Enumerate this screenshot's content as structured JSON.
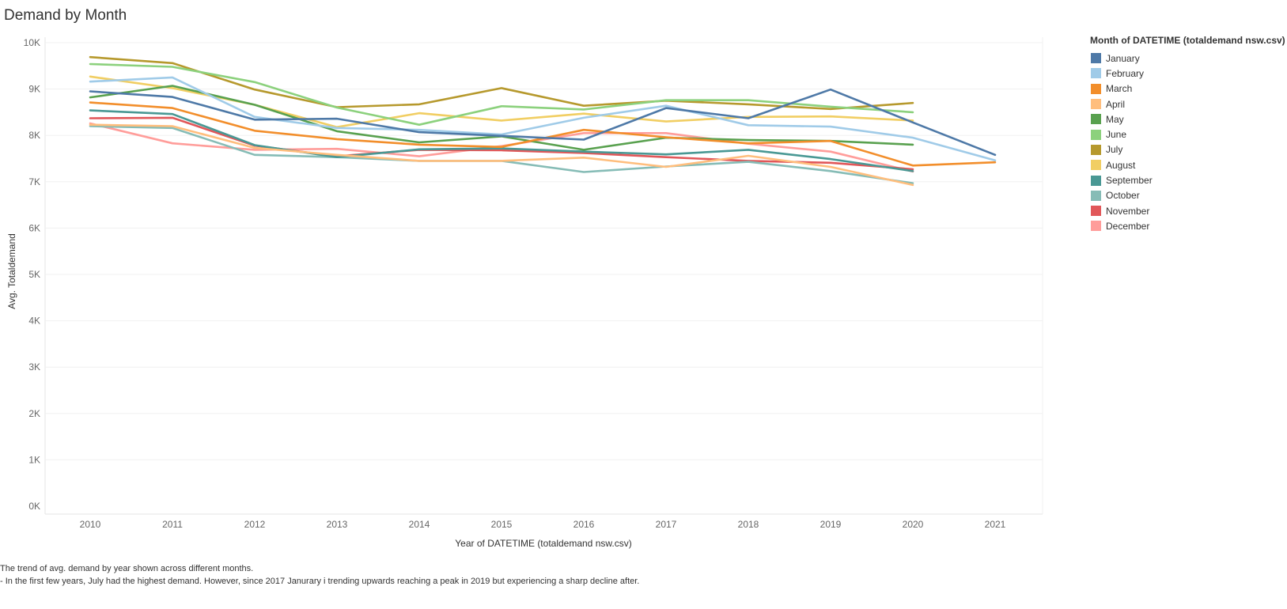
{
  "title": "Demand by Month",
  "legend_title": "Month of DATETIME (totaldemand nsw.csv)",
  "caption": {
    "line1": "The trend of avg. demand by year shown across different months.",
    "line2": "- In the first few years, July had the highest demand. However, since 2017 Janurary i trending upwards reaching a peak in 2019 but experiencing a sharp decline after."
  },
  "chart_data": {
    "type": "line",
    "title": "Demand by Month",
    "xlabel": "Year of DATETIME (totaldemand nsw.csv)",
    "ylabel": "Avg. Totaldemand",
    "x": [
      2010,
      2011,
      2012,
      2013,
      2014,
      2015,
      2016,
      2017,
      2018,
      2019,
      2020,
      2021
    ],
    "y_ticks": [
      "0K",
      "1K",
      "2K",
      "3K",
      "4K",
      "5K",
      "6K",
      "7K",
      "8K",
      "9K",
      "10K"
    ],
    "ylim": [
      0,
      10000
    ],
    "grid": true,
    "legend_position": "right",
    "series": [
      {
        "name": "January",
        "color": "#4e79a7",
        "values": [
          8950,
          8830,
          8340,
          8360,
          8070,
          7990,
          7910,
          8590,
          8370,
          8990,
          8280,
          7580
        ]
      },
      {
        "name": "February",
        "color": "#a0cbe8",
        "values": [
          9160,
          9250,
          8400,
          8160,
          8120,
          8020,
          8380,
          8640,
          8220,
          8190,
          7950,
          7460
        ]
      },
      {
        "name": "March",
        "color": "#f28e2b",
        "values": [
          8710,
          8590,
          8100,
          7920,
          7800,
          7750,
          8120,
          7960,
          7830,
          7880,
          7350,
          7420
        ]
      },
      {
        "name": "April",
        "color": "#ffbe7d",
        "values": [
          8230,
          8200,
          7730,
          7580,
          7450,
          7450,
          7520,
          7320,
          7560,
          7320,
          6930,
          null
        ]
      },
      {
        "name": "May",
        "color": "#59a14f",
        "values": [
          8820,
          9070,
          8660,
          8090,
          7850,
          7980,
          7690,
          7950,
          7900,
          7880,
          7800,
          null
        ]
      },
      {
        "name": "June",
        "color": "#8cd17d",
        "values": [
          9540,
          9480,
          9150,
          8600,
          8230,
          8630,
          8560,
          8760,
          8760,
          8620,
          8500,
          null
        ]
      },
      {
        "name": "July",
        "color": "#b6992d",
        "values": [
          9690,
          9560,
          8990,
          8610,
          8670,
          9020,
          8640,
          8750,
          8670,
          8570,
          8700,
          null
        ]
      },
      {
        "name": "August",
        "color": "#f1ce63",
        "values": [
          9270,
          9020,
          8660,
          8180,
          8480,
          8320,
          8470,
          8300,
          8400,
          8410,
          8320,
          null
        ]
      },
      {
        "name": "September",
        "color": "#499894",
        "values": [
          8540,
          8460,
          7790,
          7530,
          7700,
          7720,
          7650,
          7590,
          7690,
          7490,
          7230,
          null
        ]
      },
      {
        "name": "October",
        "color": "#86bcb6",
        "values": [
          8200,
          8160,
          7580,
          7530,
          7450,
          7450,
          7210,
          7330,
          7430,
          7230,
          6970,
          null
        ]
      },
      {
        "name": "November",
        "color": "#e15759",
        "values": [
          8370,
          8380,
          7780,
          7550,
          7690,
          7680,
          7620,
          7530,
          7450,
          7410,
          7270,
          null
        ]
      },
      {
        "name": "December",
        "color": "#ff9d9a",
        "values": [
          8260,
          7830,
          7690,
          7710,
          7550,
          7770,
          8050,
          8050,
          7820,
          7650,
          7220,
          null
        ]
      }
    ]
  }
}
